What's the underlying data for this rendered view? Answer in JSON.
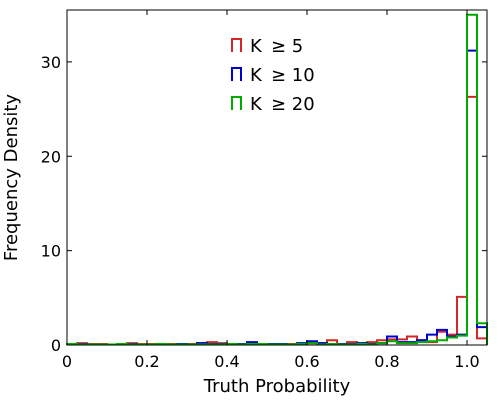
{
  "chart_data": {
    "type": "histogram",
    "xlabel": "Truth Probability",
    "ylabel": "Frequency Density",
    "xlim": [
      0,
      1.05
    ],
    "ylim": [
      0,
      35.5
    ],
    "x_ticks": [
      "0",
      "0.2",
      "0.4",
      "0.6",
      "0.8",
      "1.0"
    ],
    "y_ticks": [
      "0",
      "10",
      "20",
      "30"
    ],
    "grid": false,
    "legend_position": "top-center",
    "bin_width": 0.025,
    "bin_edges_start": 0,
    "series": [
      {
        "name": "K ≥ 5",
        "legend_label": "K",
        "legend_value": "≥ 5",
        "color": "#d62728",
        "values": [
          0.1,
          0.2,
          0.1,
          0.1,
          0.05,
          0.1,
          0.2,
          0.1,
          0.1,
          0.05,
          0.1,
          0.1,
          0.1,
          0.2,
          0.3,
          0.2,
          0.1,
          0.1,
          0.1,
          0.1,
          0.1,
          0.1,
          0.1,
          0.1,
          0.2,
          0.2,
          0.5,
          0.1,
          0.3,
          0.1,
          0.3,
          0.5,
          0.6,
          0.6,
          0.9,
          0.5,
          0.3,
          1.4,
          1.1,
          5.1,
          26.3,
          0.7
        ]
      },
      {
        "name": "K ≥ 10",
        "legend_label": "K",
        "legend_value": "≥ 10",
        "color": "#0000cc",
        "values": [
          0.05,
          0.1,
          0.05,
          0.05,
          0.05,
          0.1,
          0.1,
          0.05,
          0.05,
          0.1,
          0.05,
          0.1,
          0.05,
          0.2,
          0.1,
          0.1,
          0.1,
          0.1,
          0.3,
          0.1,
          0.1,
          0.1,
          0.05,
          0.2,
          0.4,
          0.2,
          0.1,
          0.1,
          0.1,
          0.2,
          0.1,
          0.2,
          0.9,
          0.3,
          0.3,
          0.5,
          1.1,
          1.6,
          0.9,
          1.1,
          31.2,
          1.9
        ]
      },
      {
        "name": "K ≥ 20",
        "legend_label": "K",
        "legend_value": "≥ 20",
        "color": "#00aa00",
        "values": [
          0.1,
          0.05,
          0.05,
          0.05,
          0.05,
          0.1,
          0.05,
          0.05,
          0.05,
          0.1,
          0.05,
          0.05,
          0.05,
          0.05,
          0.05,
          0.05,
          0.1,
          0.05,
          0.1,
          0.1,
          0.05,
          0.05,
          0.05,
          0.1,
          0.2,
          0.05,
          0.1,
          0.05,
          0.05,
          0.1,
          0.05,
          0.2,
          0.4,
          0.2,
          0.2,
          0.3,
          0.4,
          0.5,
          0.8,
          1.0,
          35.0,
          2.3
        ]
      }
    ]
  }
}
